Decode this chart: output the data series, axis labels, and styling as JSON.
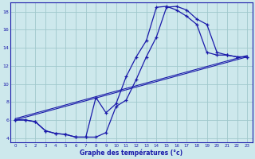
{
  "xlabel": "Graphe des températures (°c)",
  "xlim": [
    -0.5,
    23.5
  ],
  "ylim": [
    3.5,
    19.0
  ],
  "xticks": [
    0,
    1,
    2,
    3,
    4,
    5,
    6,
    7,
    8,
    9,
    10,
    11,
    12,
    13,
    14,
    15,
    16,
    17,
    18,
    19,
    20,
    21,
    22,
    23
  ],
  "yticks": [
    4,
    6,
    8,
    10,
    12,
    14,
    16,
    18
  ],
  "background_color": "#cde8ec",
  "grid_color": "#a0c8cc",
  "line_color": "#1a1aaa",
  "curve1_x": [
    0,
    1,
    2,
    3,
    4,
    5,
    6,
    7,
    8,
    9,
    10,
    11,
    12,
    13,
    14,
    15,
    16,
    17,
    18,
    19,
    20,
    21,
    22,
    23
  ],
  "curve1_y": [
    6,
    6,
    5.8,
    4.8,
    4.5,
    4.4,
    4.1,
    4.1,
    4.1,
    4.6,
    7.5,
    8.2,
    10.5,
    13.0,
    15.2,
    18.5,
    18.6,
    18.2,
    17.2,
    16.6,
    13.5,
    13.2,
    13.0,
    13.0
  ],
  "curve2_x": [
    0,
    1,
    2,
    3,
    4,
    5,
    6,
    7,
    8,
    9,
    10,
    11,
    12,
    13,
    14,
    15,
    16,
    17,
    18,
    19,
    20,
    21,
    22,
    23
  ],
  "curve2_y": [
    6,
    6,
    5.8,
    4.8,
    4.5,
    4.4,
    4.1,
    4.1,
    8.5,
    6.8,
    7.8,
    10.8,
    13.0,
    14.8,
    18.5,
    18.6,
    18.2,
    17.5,
    16.6,
    13.5,
    13.2,
    13.2,
    13.0,
    13.0
  ],
  "line1_x": [
    0,
    23
  ],
  "line1_y": [
    6,
    13
  ],
  "line2_x": [
    0,
    23
  ],
  "line2_y": [
    6,
    13
  ]
}
